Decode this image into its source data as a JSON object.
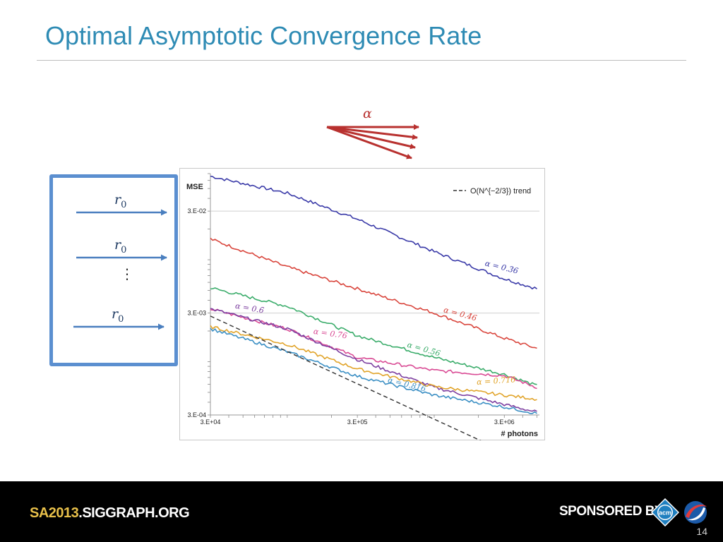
{
  "slide": {
    "title": "Optimal Asymptotic Convergence Rate",
    "page_number": "14",
    "alpha_symbol": "α",
    "r0_labels": [
      "r",
      "r",
      "r"
    ],
    "r0_subscript": "0",
    "ellipsis": "⋮"
  },
  "footer": {
    "brand_prefix": "SA2013",
    "brand_suffix": ".SIGGRAPH.ORG",
    "sponsored_by": "SPONSORED BY",
    "acm_logo_text": "acm",
    "acm_icon": "acm-diamond-icon",
    "sponsor_icon": "siggraph-swirl-icon"
  },
  "colors": {
    "title": "#2e8bb4",
    "accent_blue": "#5b8fd0",
    "arrow_red": "#b8312f",
    "footer_bg": "#000000",
    "brand_highlight": "#e8c04a"
  },
  "chart_data": {
    "type": "line",
    "ylabel": "MSE",
    "xlabel": "# photons",
    "xscale": "log",
    "yscale": "log",
    "xlim": [
      30000,
      5200000
    ],
    "ylim": [
      0.0003,
      0.07
    ],
    "x_ticks": [
      30000,
      300000,
      3000000
    ],
    "x_tick_labels": [
      "3.E+04",
      "3.E+05",
      "3.E+06"
    ],
    "y_ticks": [
      0.0003,
      0.003,
      0.03
    ],
    "y_tick_labels": [
      "3.E-04",
      "3.E-03",
      "3.E-02"
    ],
    "grid": true,
    "legend": {
      "position": "top-right",
      "entries": [
        "O(N^{−2/3}) trend"
      ]
    },
    "series": [
      {
        "name": "α = 0.3̄6",
        "color": "#3a3aa8",
        "points": [
          [
            30000,
            0.066
          ],
          [
            100000,
            0.045
          ],
          [
            300000,
            0.025
          ],
          [
            1000000,
            0.012
          ],
          [
            3000000,
            0.0065
          ],
          [
            5000000,
            0.0052
          ]
        ]
      },
      {
        "name": "α = 0.4̄6",
        "color": "#d9453c",
        "points": [
          [
            30000,
            0.016
          ],
          [
            100000,
            0.0085
          ],
          [
            300000,
            0.0052
          ],
          [
            1000000,
            0.003
          ],
          [
            3000000,
            0.0017
          ],
          [
            5000000,
            0.00135
          ]
        ]
      },
      {
        "name": "α = 0.5̄6",
        "color": "#3aac6a",
        "points": [
          [
            30000,
            0.0053
          ],
          [
            100000,
            0.0035
          ],
          [
            300000,
            0.0018
          ],
          [
            1000000,
            0.0011
          ],
          [
            3000000,
            0.00075
          ],
          [
            5000000,
            0.00058
          ]
        ]
      },
      {
        "name": "α = 0.7̄6",
        "color": "#d94a94",
        "points": [
          [
            30000,
            0.0033
          ],
          [
            100000,
            0.0021
          ],
          [
            300000,
            0.0011
          ],
          [
            1000000,
            0.00082
          ],
          [
            3000000,
            0.00073
          ],
          [
            5000000,
            0.00056
          ]
        ]
      },
      {
        "name": "α = 0.6̄",
        "color": "#7d3fa0",
        "points": [
          [
            30000,
            0.0033
          ],
          [
            100000,
            0.0021
          ],
          [
            300000,
            0.00105
          ],
          [
            1000000,
            0.00056
          ],
          [
            3000000,
            0.00038
          ],
          [
            5000000,
            0.00032
          ]
        ]
      },
      {
        "name": "α = 0.71̄6",
        "color": "#e1a42a",
        "points": [
          [
            30000,
            0.0022
          ],
          [
            100000,
            0.00148
          ],
          [
            300000,
            0.00085
          ],
          [
            1000000,
            0.00057
          ],
          [
            3000000,
            0.00047
          ],
          [
            5000000,
            0.00043
          ]
        ]
      },
      {
        "name": "α = 0.81̄6",
        "color": "#3b8fc4",
        "points": [
          [
            30000,
            0.0021
          ],
          [
            100000,
            0.00125
          ],
          [
            300000,
            0.00072
          ],
          [
            1000000,
            0.00047
          ],
          [
            3000000,
            0.00036
          ],
          [
            5000000,
            0.00031
          ]
        ]
      },
      {
        "name": "O(N^{−2/3}) trend",
        "color": "#333333",
        "dashed": true,
        "points": [
          [
            30000,
            0.0028
          ],
          [
            5000000,
            9.35e-05
          ]
        ]
      }
    ]
  }
}
